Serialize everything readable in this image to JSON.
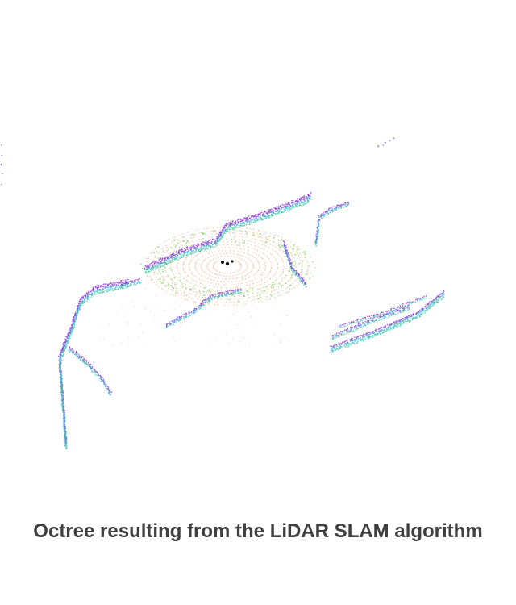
{
  "figure": {
    "caption": "Octree resulting from the LiDAR SLAM algorithm",
    "colors": {
      "edge_high": "#8a2be2",
      "edge_mid": "#3f7fe0",
      "edge_low": "#3cc9b0",
      "ground_green": "#6fcf5a",
      "ground_rings": "#f2b48a",
      "sensor": "#111111"
    }
  }
}
